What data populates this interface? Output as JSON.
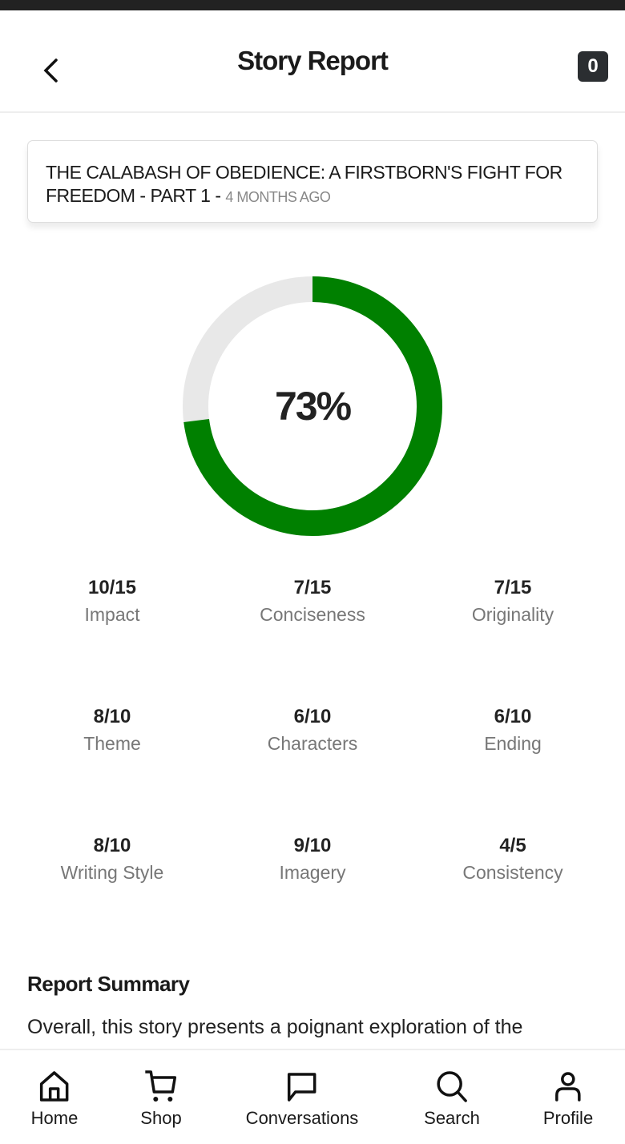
{
  "header": {
    "title": "Story Report",
    "badge": "0"
  },
  "story": {
    "title": "THE CALABASH OF OBEDIENCE: A FIRSTBORN'S FIGHT FOR FREEDOM - PART 1",
    "separator": " - ",
    "time": "4 MONTHS AGO"
  },
  "score": {
    "percent_label": "73%",
    "percent": 73,
    "fill_color": "#008000",
    "track_color": "#e8e8e8"
  },
  "metrics": [
    {
      "value": "10/15",
      "label": "Impact"
    },
    {
      "value": "7/15",
      "label": "Conciseness"
    },
    {
      "value": "7/15",
      "label": "Originality"
    },
    {
      "value": "8/10",
      "label": "Theme"
    },
    {
      "value": "6/10",
      "label": "Characters"
    },
    {
      "value": "6/10",
      "label": "Ending"
    },
    {
      "value": "8/10",
      "label": "Writing Style"
    },
    {
      "value": "9/10",
      "label": "Imagery"
    },
    {
      "value": "4/5",
      "label": "Consistency"
    }
  ],
  "summary": {
    "heading": "Report Summary",
    "text": "Overall, this story presents a poignant exploration of the"
  },
  "nav": [
    {
      "label": "Home",
      "icon": "home-icon"
    },
    {
      "label": "Shop",
      "icon": "cart-icon"
    },
    {
      "label": "Conversations",
      "icon": "chat-icon"
    },
    {
      "label": "Search",
      "icon": "search-icon"
    },
    {
      "label": "Profile",
      "icon": "profile-icon"
    }
  ]
}
